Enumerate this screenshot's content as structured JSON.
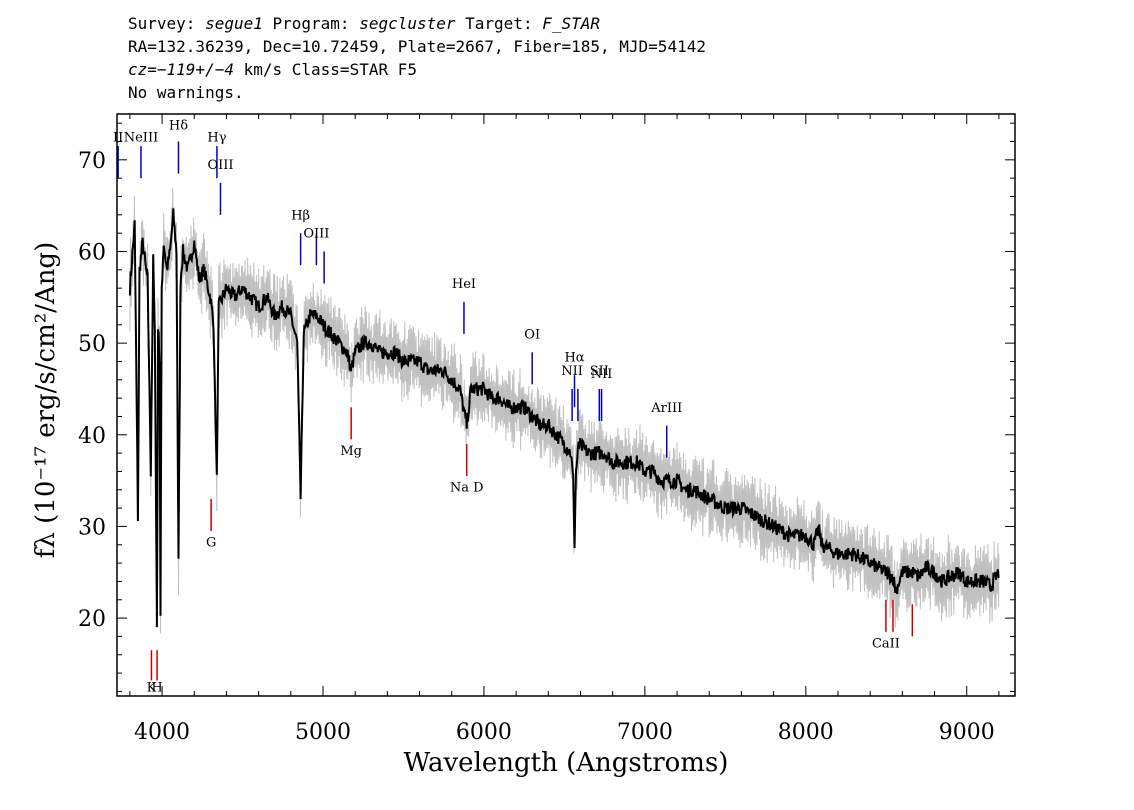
{
  "header": {
    "line1": {
      "survey_label": "Survey: ",
      "survey": "segue1",
      "program_label": " Program: ",
      "program": "segcluster",
      "target_label": " Target: ",
      "target": "F_STAR"
    },
    "line2": "RA=132.36239, Dec=10.72459, Plate=2667, Fiber=185, MJD=54142",
    "line3": {
      "cz": "cz=−119+/−4",
      "rest": " km/s Class=STAR F5"
    },
    "line4": "No warnings."
  },
  "chart_data": {
    "type": "line",
    "xlabel": "Wavelength (Angstroms)",
    "ylabel": "fλ (10⁻¹⁷ erg/s/cm²/Ang)",
    "xlim": [
      3720,
      9300
    ],
    "ylim": [
      11.5,
      75
    ],
    "xticks": [
      4000,
      5000,
      6000,
      7000,
      8000,
      9000
    ],
    "yticks": [
      20,
      30,
      40,
      50,
      60,
      70
    ],
    "colors": {
      "flux": "#000000",
      "error": "#c0c0c0",
      "emission": "#0000cc",
      "absorption": "#cc0000"
    },
    "series": [
      {
        "key": "flux",
        "points": [
          [
            3800,
            56
          ],
          [
            3830,
            63
          ],
          [
            3850,
            31
          ],
          [
            3860,
            58
          ],
          [
            3880,
            61
          ],
          [
            3900,
            58
          ],
          [
            3910,
            57
          ],
          [
            3930,
            36
          ],
          [
            3945,
            59
          ],
          [
            3955,
            51
          ],
          [
            3968,
            19
          ],
          [
            3975,
            52
          ],
          [
            3985,
            48
          ],
          [
            3990,
            20
          ],
          [
            3998,
            56
          ],
          [
            4010,
            61
          ],
          [
            4030,
            58
          ],
          [
            4050,
            60
          ],
          [
            4070,
            64
          ],
          [
            4090,
            60
          ],
          [
            4102,
            26
          ],
          [
            4115,
            57
          ],
          [
            4130,
            60
          ],
          [
            4160,
            58
          ],
          [
            4200,
            61
          ],
          [
            4230,
            57
          ],
          [
            4260,
            58
          ],
          [
            4300,
            55
          ],
          [
            4320,
            52
          ],
          [
            4340,
            35
          ],
          [
            4352,
            54
          ],
          [
            4400,
            56
          ],
          [
            4450,
            55
          ],
          [
            4500,
            56
          ],
          [
            4550,
            55
          ],
          [
            4600,
            54
          ],
          [
            4650,
            55
          ],
          [
            4700,
            53
          ],
          [
            4750,
            54
          ],
          [
            4800,
            53
          ],
          [
            4840,
            50
          ],
          [
            4861,
            33
          ],
          [
            4880,
            51
          ],
          [
            4920,
            53
          ],
          [
            4960,
            53
          ],
          [
            5000,
            52
          ],
          [
            5050,
            51
          ],
          [
            5100,
            50
          ],
          [
            5150,
            49
          ],
          [
            5175,
            47
          ],
          [
            5200,
            49
          ],
          [
            5250,
            50
          ],
          [
            5300,
            50
          ],
          [
            5350,
            49
          ],
          [
            5400,
            49
          ],
          [
            5450,
            49
          ],
          [
            5500,
            48
          ],
          [
            5550,
            48
          ],
          [
            5600,
            48
          ],
          [
            5650,
            47
          ],
          [
            5700,
            47
          ],
          [
            5750,
            47
          ],
          [
            5800,
            46
          ],
          [
            5850,
            45
          ],
          [
            5893,
            41
          ],
          [
            5920,
            45
          ],
          [
            5950,
            45
          ],
          [
            6000,
            45
          ],
          [
            6050,
            44
          ],
          [
            6100,
            44
          ],
          [
            6150,
            43
          ],
          [
            6200,
            43
          ],
          [
            6250,
            43
          ],
          [
            6300,
            42
          ],
          [
            6350,
            41
          ],
          [
            6400,
            41
          ],
          [
            6450,
            40
          ],
          [
            6500,
            39
          ],
          [
            6540,
            38
          ],
          [
            6555,
            35
          ],
          [
            6563,
            28
          ],
          [
            6572,
            36
          ],
          [
            6590,
            39
          ],
          [
            6650,
            38
          ],
          [
            6700,
            38
          ],
          [
            6750,
            38
          ],
          [
            6800,
            37
          ],
          [
            6850,
            37
          ],
          [
            6900,
            37
          ],
          [
            6950,
            37
          ],
          [
            7000,
            36
          ],
          [
            7050,
            36
          ],
          [
            7100,
            35
          ],
          [
            7150,
            35
          ],
          [
            7200,
            35
          ],
          [
            7250,
            34
          ],
          [
            7300,
            34
          ],
          [
            7400,
            33
          ],
          [
            7500,
            32
          ],
          [
            7600,
            32
          ],
          [
            7700,
            31
          ],
          [
            7800,
            30
          ],
          [
            7900,
            29
          ],
          [
            8000,
            29
          ],
          [
            8050,
            28
          ],
          [
            8080,
            29.8
          ],
          [
            8100,
            28
          ],
          [
            8200,
            27
          ],
          [
            8300,
            27
          ],
          [
            8400,
            26
          ],
          [
            8500,
            25
          ],
          [
            8540,
            24.5
          ],
          [
            8560,
            23
          ],
          [
            8600,
            25
          ],
          [
            8662,
            25
          ],
          [
            8700,
            24.5
          ],
          [
            8750,
            25.5
          ],
          [
            8800,
            25
          ],
          [
            8850,
            24
          ],
          [
            8900,
            24.5
          ],
          [
            8950,
            25
          ],
          [
            9000,
            24
          ],
          [
            9050,
            24
          ],
          [
            9100,
            24
          ],
          [
            9150,
            23.5
          ],
          [
            9200,
            25
          ]
        ]
      }
    ],
    "lines": {
      "emission": [
        {
          "label": "II",
          "x": 3727,
          "y_low": 68,
          "y_high": 71.5,
          "ly": 72
        },
        {
          "label": "NeIII",
          "x": 3869,
          "y_low": 68,
          "y_high": 71.5,
          "ly": 72
        },
        {
          "label": "Hδ",
          "x": 4102,
          "y_low": 68.5,
          "y_high": 72,
          "ly": 73.3
        },
        {
          "label": "Hγ",
          "x": 4341,
          "y_low": 68,
          "y_high": 71.5,
          "ly": 72
        },
        {
          "label": "OIII",
          "x": 4363,
          "y_low": 64,
          "y_high": 67.5,
          "ly": 69
        },
        {
          "label": "Hβ",
          "x": 4861,
          "y_low": 58.5,
          "y_high": 62,
          "ly": 63.5
        },
        {
          "label": "OIII",
          "x": 4959,
          "y_low": 58.5,
          "y_high": 62,
          "ly": 61.5
        },
        {
          "label": "",
          "x": 5007,
          "y_low": 56.5,
          "y_high": 60,
          "ly": 0
        },
        {
          "label": "HeI",
          "x": 5876,
          "y_low": 51,
          "y_high": 54.5,
          "ly": 56
        },
        {
          "label": "OI",
          "x": 6300,
          "y_low": 45.5,
          "y_high": 49,
          "ly": 50.5
        },
        {
          "label": "Hα",
          "x": 6563,
          "y_low": 43,
          "y_high": 46.5,
          "ly": 48
        },
        {
          "label": "NII",
          "x": 6548,
          "y_low": 41.5,
          "y_high": 45,
          "ly": 46.5
        },
        {
          "label": "",
          "x": 6584,
          "y_low": 41.5,
          "y_high": 45,
          "ly": 0
        },
        {
          "label": "SII",
          "x": 6717,
          "y_low": 41.5,
          "y_high": 45,
          "ly": 46.5
        },
        {
          "label": "NII",
          "x": 6731,
          "y_low": 41.5,
          "y_high": 45,
          "ly": 46.2
        },
        {
          "label": "ArIII",
          "x": 7136,
          "y_low": 37.5,
          "y_high": 41,
          "ly": 42.5
        }
      ],
      "absorption": [
        {
          "label": "K",
          "x": 3934,
          "y_low": 13.2,
          "y_high": 16.5,
          "ly": 12
        },
        {
          "label": "H",
          "x": 3969,
          "y_low": 13.2,
          "y_high": 16.5,
          "ly": 12
        },
        {
          "label": "G",
          "x": 4305,
          "y_low": 29.5,
          "y_high": 33,
          "ly": 27.8
        },
        {
          "label": "Mg",
          "x": 5175,
          "y_low": 39.5,
          "y_high": 43,
          "ly": 37.8
        },
        {
          "label": "Na D",
          "x": 5893,
          "y_low": 35.5,
          "y_high": 39,
          "ly": 33.8
        },
        {
          "label": "CaII",
          "x": 8498,
          "y_low": 18.5,
          "y_high": 22,
          "ly": 16.8
        },
        {
          "label": "",
          "x": 8542,
          "y_low": 18.5,
          "y_high": 22,
          "ly": 0
        },
        {
          "label": "",
          "x": 8662,
          "y_low": 18,
          "y_high": 21.5,
          "ly": 0
        }
      ]
    }
  }
}
